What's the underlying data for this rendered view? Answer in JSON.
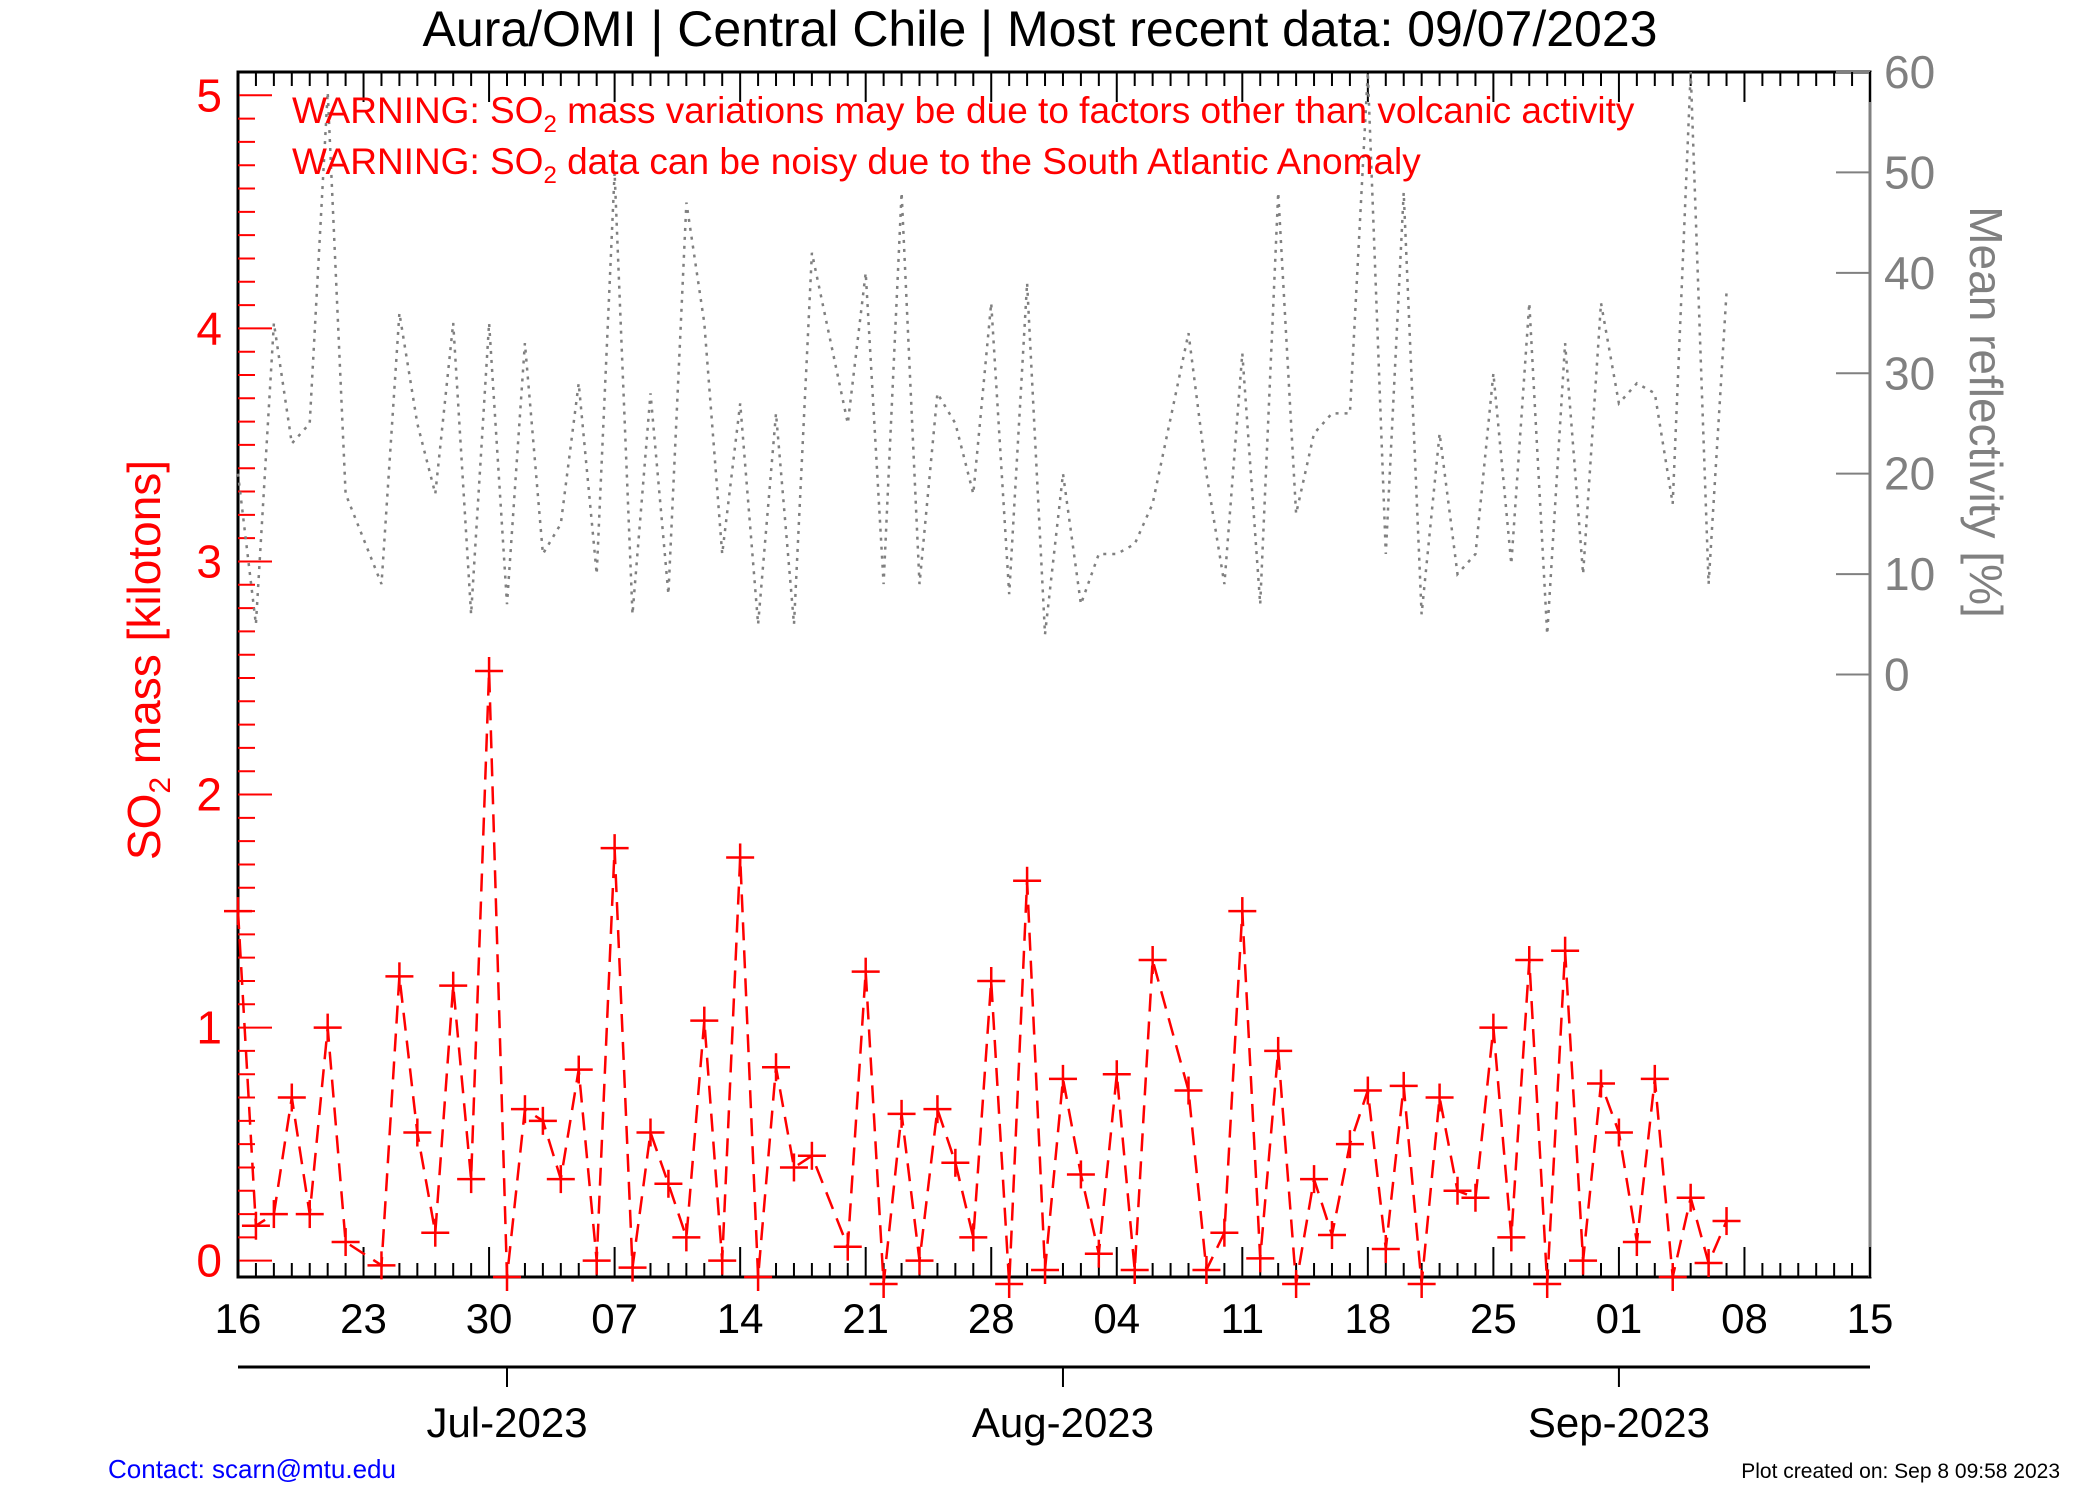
{
  "title": "Aura/OMI | Central Chile | Most recent data: 09/07/2023",
  "warnings": [
    {
      "pre": "WARNING: SO",
      "sub": "2",
      "post": " mass variations may be due to factors other than volcanic activity"
    },
    {
      "pre": "WARNING: SO",
      "sub": "2",
      "post": " data can be noisy due to the South Atlantic Anomaly"
    }
  ],
  "footer": {
    "contact": "Contact: scarn@mtu.edu",
    "created": "Plot created on: Sep  8 09:58 2023"
  },
  "colors": {
    "so2": "#ff0000",
    "reflectivity": "#808080",
    "axis": "#000000",
    "contact": "#0000ff"
  },
  "chart_data": {
    "type": "line",
    "title": "Aura/OMI | Central Chile | Most recent data: 09/07/2023",
    "x_start": "2023-06-16",
    "x_end": "2023-09-15",
    "x_tick_labels": [
      "16",
      "23",
      "30",
      "07",
      "14",
      "21",
      "28",
      "04",
      "11",
      "18",
      "25",
      "01",
      "08",
      "15"
    ],
    "month_labels": [
      "Jul-2023",
      "Aug-2023",
      "Sep-2023"
    ],
    "y_left": {
      "label_pre": "SO",
      "label_sub": "2",
      "label_post": " mass [kilotons]",
      "ylim": [
        -0.07,
        5.1
      ],
      "ticks": [
        0,
        1,
        2,
        3,
        4,
        5
      ]
    },
    "y_right": {
      "label": "Mean reflectivity [%]",
      "ylim": [
        -60,
        60
      ],
      "ticks": [
        0,
        10,
        20,
        30,
        40,
        50,
        60
      ]
    },
    "series": [
      {
        "axis": "left",
        "style": "dashed-plus",
        "points": [
          [
            "2023-06-16",
            1.5
          ],
          [
            "2023-06-17",
            0.15
          ],
          [
            "2023-06-18",
            0.2
          ],
          [
            "2023-06-19",
            0.7
          ],
          [
            "2023-06-20",
            0.2
          ],
          [
            "2023-06-21",
            1.0
          ],
          [
            "2023-06-22",
            0.08
          ],
          [
            "2023-06-24",
            -0.02
          ],
          [
            "2023-06-25",
            1.22
          ],
          [
            "2023-06-26",
            0.55
          ],
          [
            "2023-06-27",
            0.12
          ],
          [
            "2023-06-28",
            1.18
          ],
          [
            "2023-06-29",
            0.35
          ],
          [
            "2023-06-30",
            2.53
          ],
          [
            "2023-07-01",
            -0.07
          ],
          [
            "2023-07-02",
            0.65
          ],
          [
            "2023-07-03",
            0.6
          ],
          [
            "2023-07-04",
            0.35
          ],
          [
            "2023-07-05",
            0.82
          ],
          [
            "2023-07-06",
            0.0
          ],
          [
            "2023-07-07",
            1.77
          ],
          [
            "2023-07-08",
            -0.03
          ],
          [
            "2023-07-09",
            0.55
          ],
          [
            "2023-07-10",
            0.33
          ],
          [
            "2023-07-11",
            0.1
          ],
          [
            "2023-07-12",
            1.03
          ],
          [
            "2023-07-13",
            0.0
          ],
          [
            "2023-07-14",
            1.73
          ],
          [
            "2023-07-15",
            -0.07
          ],
          [
            "2023-07-16",
            0.83
          ],
          [
            "2023-07-17",
            0.4
          ],
          [
            "2023-07-18",
            0.45
          ],
          [
            "2023-07-20",
            0.06
          ],
          [
            "2023-07-21",
            1.24
          ],
          [
            "2023-07-22",
            -0.1
          ],
          [
            "2023-07-23",
            0.63
          ],
          [
            "2023-07-24",
            0.0
          ],
          [
            "2023-07-25",
            0.65
          ],
          [
            "2023-07-26",
            0.42
          ],
          [
            "2023-07-27",
            0.1
          ],
          [
            "2023-07-28",
            1.2
          ],
          [
            "2023-07-29",
            -0.1
          ],
          [
            "2023-07-30",
            1.63
          ],
          [
            "2023-07-31",
            -0.04
          ],
          [
            "2023-08-01",
            0.78
          ],
          [
            "2023-08-02",
            0.37
          ],
          [
            "2023-08-03",
            0.03
          ],
          [
            "2023-08-04",
            0.8
          ],
          [
            "2023-08-05",
            -0.04
          ],
          [
            "2023-08-06",
            1.29
          ],
          [
            "2023-08-08",
            0.73
          ],
          [
            "2023-08-09",
            -0.04
          ],
          [
            "2023-08-10",
            0.12
          ],
          [
            "2023-08-11",
            1.5
          ],
          [
            "2023-08-12",
            0.01
          ],
          [
            "2023-08-13",
            0.9
          ],
          [
            "2023-08-14",
            -0.1
          ],
          [
            "2023-08-15",
            0.35
          ],
          [
            "2023-08-16",
            0.11
          ],
          [
            "2023-08-17",
            0.5
          ],
          [
            "2023-08-18",
            0.73
          ],
          [
            "2023-08-19",
            0.05
          ],
          [
            "2023-08-20",
            0.75
          ],
          [
            "2023-08-21",
            -0.1
          ],
          [
            "2023-08-22",
            0.7
          ],
          [
            "2023-08-23",
            0.3
          ],
          [
            "2023-08-24",
            0.27
          ],
          [
            "2023-08-25",
            1.0
          ],
          [
            "2023-08-26",
            0.1
          ],
          [
            "2023-08-27",
            1.29
          ],
          [
            "2023-08-28",
            -0.1
          ],
          [
            "2023-08-29",
            1.33
          ],
          [
            "2023-08-30",
            0.0
          ],
          [
            "2023-08-31",
            0.76
          ],
          [
            "2023-09-01",
            0.55
          ],
          [
            "2023-09-02",
            0.08
          ],
          [
            "2023-09-03",
            0.78
          ],
          [
            "2023-09-04",
            -0.07
          ],
          [
            "2023-09-05",
            0.27
          ],
          [
            "2023-09-06",
            -0.01
          ],
          [
            "2023-09-07",
            0.17
          ]
        ]
      },
      {
        "axis": "right",
        "style": "dotted",
        "points": [
          [
            "2023-06-16",
            20
          ],
          [
            "2023-06-17",
            5
          ],
          [
            "2023-06-18",
            35
          ],
          [
            "2023-06-19",
            23
          ],
          [
            "2023-06-20",
            25
          ],
          [
            "2023-06-21",
            58
          ],
          [
            "2023-06-22",
            18
          ],
          [
            "2023-06-24",
            9
          ],
          [
            "2023-06-25",
            36
          ],
          [
            "2023-06-26",
            25
          ],
          [
            "2023-06-27",
            18
          ],
          [
            "2023-06-28",
            35
          ],
          [
            "2023-06-29",
            6
          ],
          [
            "2023-06-30",
            35
          ],
          [
            "2023-07-01",
            7
          ],
          [
            "2023-07-02",
            33
          ],
          [
            "2023-07-03",
            12
          ],
          [
            "2023-07-04",
            15
          ],
          [
            "2023-07-05",
            29
          ],
          [
            "2023-07-06",
            10
          ],
          [
            "2023-07-07",
            50
          ],
          [
            "2023-07-08",
            6
          ],
          [
            "2023-07-09",
            28
          ],
          [
            "2023-07-10",
            8
          ],
          [
            "2023-07-11",
            47
          ],
          [
            "2023-07-12",
            35
          ],
          [
            "2023-07-13",
            12
          ],
          [
            "2023-07-14",
            27
          ],
          [
            "2023-07-15",
            5
          ],
          [
            "2023-07-16",
            26
          ],
          [
            "2023-07-17",
            5
          ],
          [
            "2023-07-18",
            42
          ],
          [
            "2023-07-20",
            25
          ],
          [
            "2023-07-21",
            40
          ],
          [
            "2023-07-22",
            9
          ],
          [
            "2023-07-23",
            48
          ],
          [
            "2023-07-24",
            9
          ],
          [
            "2023-07-25",
            28
          ],
          [
            "2023-07-26",
            25
          ],
          [
            "2023-07-27",
            18
          ],
          [
            "2023-07-28",
            37
          ],
          [
            "2023-07-29",
            8
          ],
          [
            "2023-07-30",
            39
          ],
          [
            "2023-07-31",
            4
          ],
          [
            "2023-08-01",
            20
          ],
          [
            "2023-08-02",
            7
          ],
          [
            "2023-08-03",
            12
          ],
          [
            "2023-08-04",
            12
          ],
          [
            "2023-08-05",
            13
          ],
          [
            "2023-08-06",
            17
          ],
          [
            "2023-08-08",
            34
          ],
          [
            "2023-08-09",
            20
          ],
          [
            "2023-08-10",
            9
          ],
          [
            "2023-08-11",
            32
          ],
          [
            "2023-08-12",
            7
          ],
          [
            "2023-08-13",
            48
          ],
          [
            "2023-08-14",
            16
          ],
          [
            "2023-08-15",
            24
          ],
          [
            "2023-08-16",
            26
          ],
          [
            "2023-08-17",
            26
          ],
          [
            "2023-08-18",
            60
          ],
          [
            "2023-08-19",
            12
          ],
          [
            "2023-08-20",
            48
          ],
          [
            "2023-08-21",
            6
          ],
          [
            "2023-08-22",
            24
          ],
          [
            "2023-08-23",
            10
          ],
          [
            "2023-08-24",
            12
          ],
          [
            "2023-08-25",
            30
          ],
          [
            "2023-08-26",
            11
          ],
          [
            "2023-08-27",
            37
          ],
          [
            "2023-08-28",
            4
          ],
          [
            "2023-08-29",
            33
          ],
          [
            "2023-08-30",
            10
          ],
          [
            "2023-08-31",
            37
          ],
          [
            "2023-09-01",
            27
          ],
          [
            "2023-09-02",
            29
          ],
          [
            "2023-09-03",
            28
          ],
          [
            "2023-09-04",
            17
          ],
          [
            "2023-09-05",
            60
          ],
          [
            "2023-09-06",
            9
          ],
          [
            "2023-09-07",
            38
          ]
        ]
      }
    ]
  }
}
